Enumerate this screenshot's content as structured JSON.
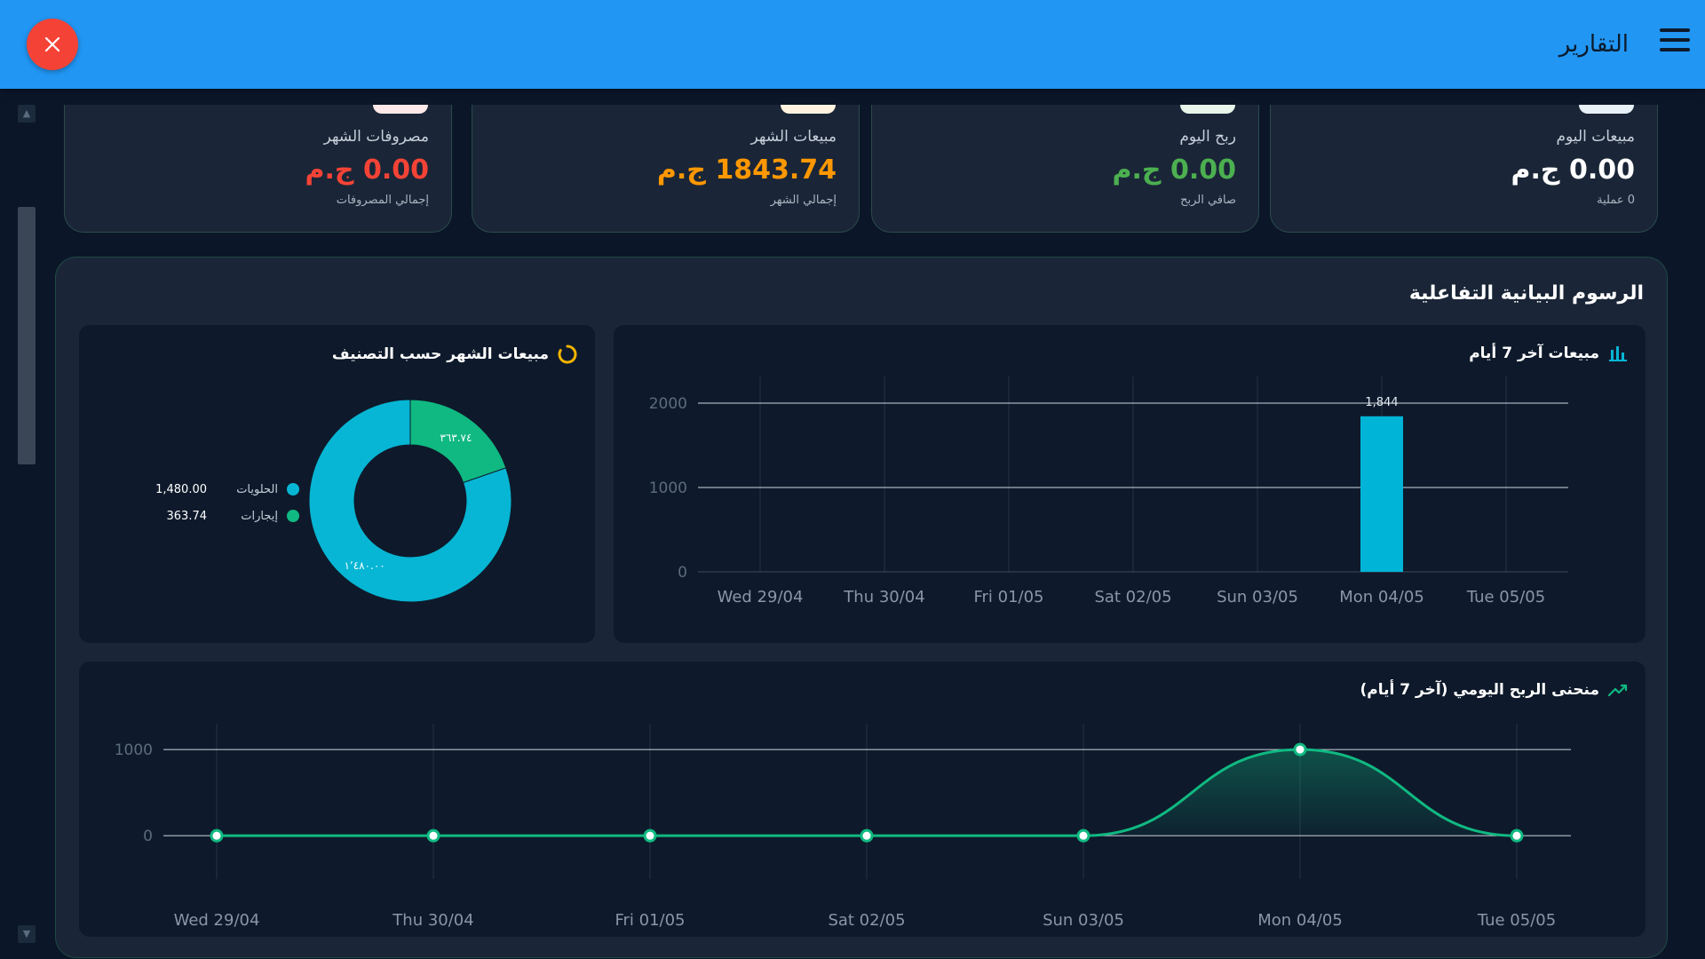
{
  "header": {
    "title": "التقارير"
  },
  "stats": [
    {
      "label": "مبيعات اليوم",
      "value": "0.00 ج.م",
      "sub": "0 عملية",
      "color": "#ffffff"
    },
    {
      "label": "ربح اليوم",
      "value": "0.00 ج.م",
      "sub": "صافي الربح",
      "color": "#4caf50"
    },
    {
      "label": "مبيعات الشهر",
      "value": "1843.74 ج.م",
      "sub": "إجمالي الشهر",
      "color": "#ff9800"
    },
    {
      "label": "مصروفات الشهر",
      "value": "0.00 ج.م",
      "sub": "إجمالي المصروفات",
      "color": "#f44336"
    }
  ],
  "charts_panel": {
    "title": "الرسوم البيانية التفاعلية"
  },
  "chart_data": [
    {
      "type": "bar",
      "title": "مبيعات آخر 7 أيام",
      "categories": [
        "Wed 29/04",
        "Thu 30/04",
        "Fri 01/05",
        "Sat 02/05",
        "Sun 03/05",
        "Mon 04/05",
        "Tue 05/05"
      ],
      "values": [
        0,
        0,
        0,
        0,
        0,
        1844,
        0
      ],
      "data_labels": [
        "",
        "",
        "",
        "",
        "",
        "1,844",
        ""
      ],
      "ylim": [
        0,
        2000
      ],
      "yticks": [
        0,
        1000,
        2000
      ],
      "color": "#00b4d8"
    },
    {
      "type": "pie",
      "title": "مبيعات الشهر حسب التصنيف",
      "labels": [
        "الحلويات",
        "إيجارات"
      ],
      "values": [
        1480.0,
        363.74
      ],
      "value_labels": [
        "1,480.00",
        "363.74"
      ],
      "slice_labels": [
        "١٬٤٨٠.٠٠",
        "٣٦٣.٧٤"
      ],
      "colors": [
        "#06b6d4",
        "#10b981"
      ],
      "donut": true
    },
    {
      "type": "area",
      "title": "منحنى الربح اليومي (آخر 7 أيام)",
      "categories": [
        "Wed 29/04",
        "Thu 30/04",
        "Fri 01/05",
        "Sat 02/05",
        "Sun 03/05",
        "Mon 04/05",
        "Tue 05/05"
      ],
      "values": [
        0,
        0,
        0,
        0,
        0,
        1000,
        0
      ],
      "ylim": [
        -400,
        1300
      ],
      "yticks": [
        0,
        1000
      ],
      "color": "#10b981"
    }
  ]
}
